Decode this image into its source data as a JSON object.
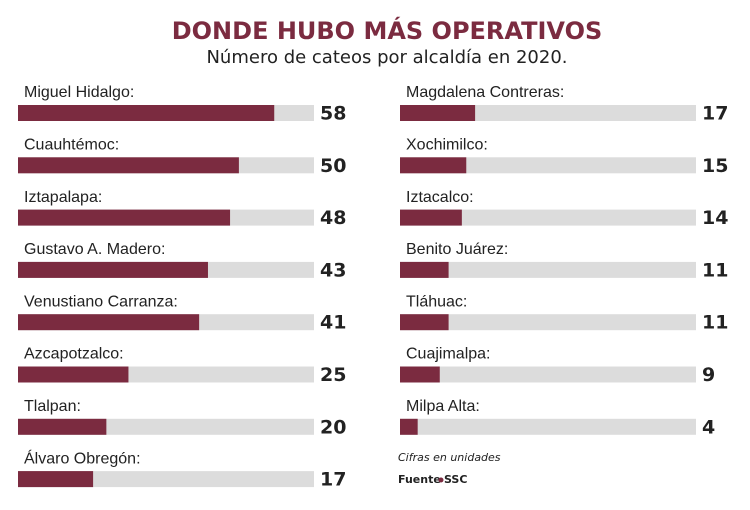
{
  "chart_data": {
    "type": "bar",
    "orientation": "horizontal",
    "title": "DONDE HUBO MÁS OPERATIVOS",
    "subtitle": "Número de cateos por alcaldía en 2020.",
    "categories": [
      "Miguel Hidalgo:",
      "Cuauhtémoc:",
      "Iztapalapa:",
      "Gustavo A. Madero:",
      "Venustiano Carranza:",
      "Azcapotzalco:",
      "Tlalpan:",
      "Álvaro Obregón:",
      "Magdalena Contreras:",
      "Xochimilco:",
      "Iztacalco:",
      "Benito Juárez:",
      "Tláhuac:",
      "Cuajimalpa:",
      "Milpa Alta:"
    ],
    "values": [
      58,
      50,
      48,
      43,
      41,
      25,
      20,
      17,
      17,
      15,
      14,
      11,
      11,
      9,
      4
    ],
    "color": "#7b2b40",
    "xlim": [
      0,
      67
    ],
    "note": "Cifras en unidades",
    "source_label": "Fuente",
    "source": "SSC"
  }
}
